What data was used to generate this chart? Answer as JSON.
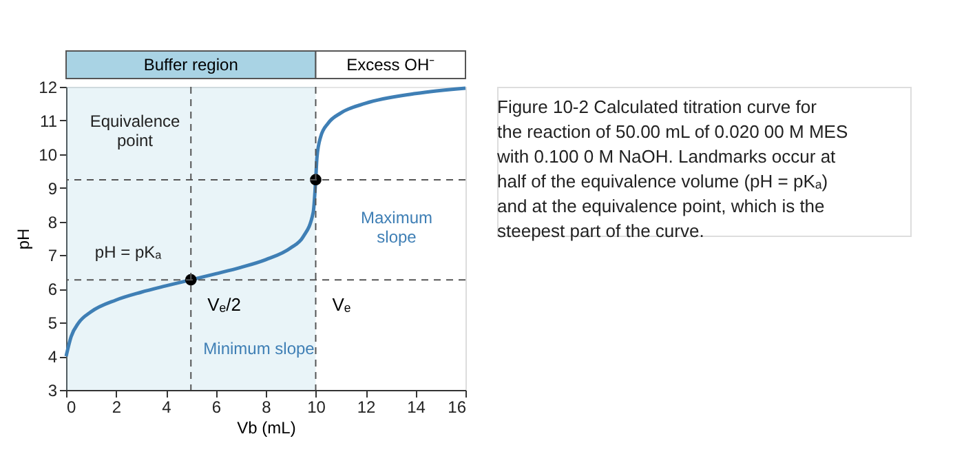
{
  "chart_data": {
    "type": "line",
    "xlabel": "Vb (mL)",
    "ylabel": "pH",
    "xlim": [
      0,
      16
    ],
    "ylim": [
      3,
      12
    ],
    "xticks": [
      0,
      2,
      4,
      6,
      8,
      10,
      12,
      14,
      16
    ],
    "yticks": [
      3,
      4,
      5,
      6,
      7,
      8,
      9,
      10,
      11,
      12
    ],
    "grid": false,
    "series": [
      {
        "color": "#3f7fb5",
        "x": [
          0,
          0.2,
          0.5,
          1,
          2,
          3,
          4,
          5,
          6,
          7,
          8,
          9,
          9.5,
          9.9,
          10,
          10.05,
          10.2,
          10.5,
          11,
          12,
          14,
          16
        ],
        "values": [
          4.0,
          4.58,
          4.99,
          5.32,
          5.67,
          5.9,
          6.09,
          6.27,
          6.45,
          6.64,
          6.87,
          7.22,
          7.55,
          8.27,
          9.24,
          9.9,
          10.52,
          10.92,
          11.22,
          11.51,
          11.8,
          11.96
        ]
      },
      {
        "type": "scatter",
        "color": "#000000",
        "x": [
          5,
          10
        ],
        "values": [
          6.27,
          9.24
        ]
      }
    ],
    "ref_lines": [
      {
        "axis": "x",
        "value": 5,
        "label": "Vₑ/2",
        "line_style": "dashed"
      },
      {
        "axis": "x",
        "value": 10,
        "label": "Vₑ",
        "line_style": "dashed"
      },
      {
        "axis": "y",
        "value": 6.27,
        "label": null,
        "line_style": "dashed"
      },
      {
        "axis": "y",
        "value": 9.24,
        "label": null,
        "line_style": "dashed"
      }
    ],
    "bands": [
      {
        "axis": "x",
        "from": 0,
        "to": 10,
        "label": "Buffer region",
        "color": "#a9d3e4"
      },
      {
        "axis": "x",
        "from": 10,
        "to": 16,
        "label": "Excess OH⁻",
        "color": "#ffffff"
      }
    ],
    "annotations": [
      "Equivalence point",
      "Maximum slope",
      "pH = pKₐ",
      "Minimum slope",
      "Figure 10-2 Calculated titration curve for the reaction of 50.00 mL of 0.020 00 M MES with 0.100 0 M NaOH. Landmarks occur at half of the equivalence volume (pH = pKₐ) and at the equivalence point, which is the steepest part of the curve."
    ]
  }
}
